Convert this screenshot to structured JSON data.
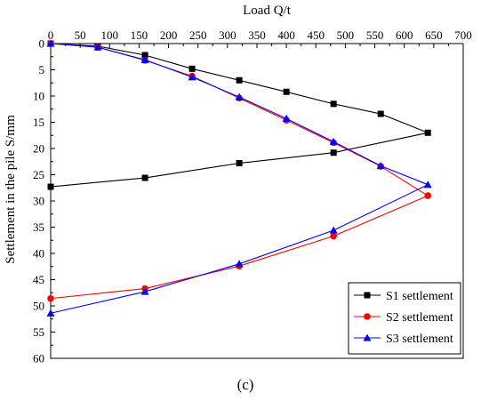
{
  "chart_data": {
    "type": "line",
    "xlabel": "Load   Q/t",
    "ylabel": "Settlement in the pile S/mm",
    "caption": "(c)",
    "xlim": [
      0,
      700
    ],
    "ylim": [
      0,
      60
    ],
    "x_ticks": [
      0,
      50,
      100,
      150,
      200,
      250,
      300,
      350,
      400,
      450,
      500,
      550,
      600,
      650,
      700
    ],
    "y_ticks": [
      0,
      5,
      10,
      15,
      20,
      25,
      30,
      35,
      40,
      45,
      50,
      55,
      60
    ],
    "x_axis_position": "top",
    "y_inverted": true,
    "grid": false,
    "legend_position": "bottom-right",
    "series": [
      {
        "name": "S1 settlement",
        "color": "#000000",
        "marker": "square",
        "points": [
          [
            0,
            0
          ],
          [
            80,
            0.5
          ],
          [
            160,
            2.2
          ],
          [
            240,
            4.8
          ],
          [
            320,
            7.0
          ],
          [
            400,
            9.2
          ],
          [
            480,
            11.5
          ],
          [
            560,
            13.4
          ],
          [
            640,
            17.0
          ],
          [
            480,
            20.8
          ],
          [
            320,
            22.8
          ],
          [
            160,
            25.6
          ],
          [
            0,
            27.3
          ]
        ]
      },
      {
        "name": "S2 settlement",
        "color": "#ff0000",
        "marker": "circle",
        "points": [
          [
            0,
            0
          ],
          [
            80,
            0.7
          ],
          [
            160,
            3.2
          ],
          [
            240,
            6.2
          ],
          [
            320,
            10.4
          ],
          [
            400,
            14.6
          ],
          [
            480,
            18.9
          ],
          [
            560,
            23.4
          ],
          [
            640,
            29.0
          ],
          [
            480,
            36.7
          ],
          [
            320,
            42.4
          ],
          [
            160,
            46.7
          ],
          [
            0,
            48.6
          ]
        ]
      },
      {
        "name": "S3 settlement",
        "color": "#0000ff",
        "marker": "triangle",
        "points": [
          [
            0,
            0
          ],
          [
            80,
            0.7
          ],
          [
            160,
            3.1
          ],
          [
            240,
            6.4
          ],
          [
            320,
            10.2
          ],
          [
            400,
            14.3
          ],
          [
            480,
            18.7
          ],
          [
            560,
            23.3
          ],
          [
            640,
            26.9
          ],
          [
            480,
            35.6
          ],
          [
            320,
            42.0
          ],
          [
            160,
            47.3
          ],
          [
            0,
            51.4
          ]
        ]
      }
    ]
  }
}
